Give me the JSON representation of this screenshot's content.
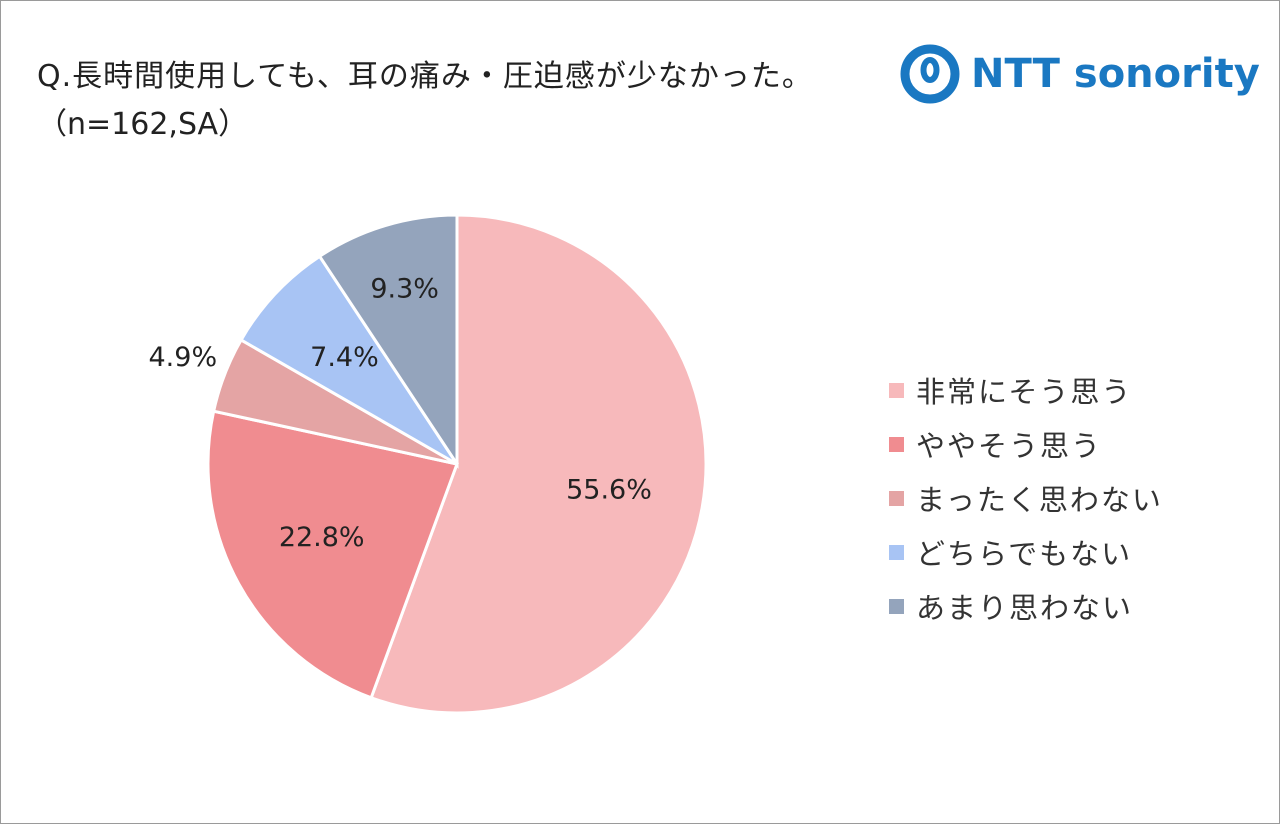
{
  "header": {
    "title": "Q.長時間使用しても、耳の痛み・圧迫感が少なかった。",
    "subtitle": "（n=162,SA）",
    "logo_text": "NTT sonority",
    "logo_icon": "nttsonority-logo-icon",
    "logo_color": "#1a78c2"
  },
  "chart_data": {
    "type": "pie",
    "start_angle_deg": 0,
    "direction": "clockwise",
    "slices": [
      {
        "label": "非常にそう思う",
        "value": 55.6,
        "display": "55.6%",
        "color": "#f7b9bb"
      },
      {
        "label": "ややそう思う",
        "value": 22.8,
        "display": "22.8%",
        "color": "#f08c90"
      },
      {
        "label": "まったく思わない",
        "value": 4.9,
        "display": "4.9%",
        "color": "#e4a4a4"
      },
      {
        "label": "どちらでもない",
        "value": 7.4,
        "display": "7.4%",
        "color": "#a8c4f4"
      },
      {
        "label": "あまり思わない",
        "value": 9.3,
        "display": "9.3%",
        "color": "#94a4bc"
      }
    ],
    "legend_position": "right"
  }
}
